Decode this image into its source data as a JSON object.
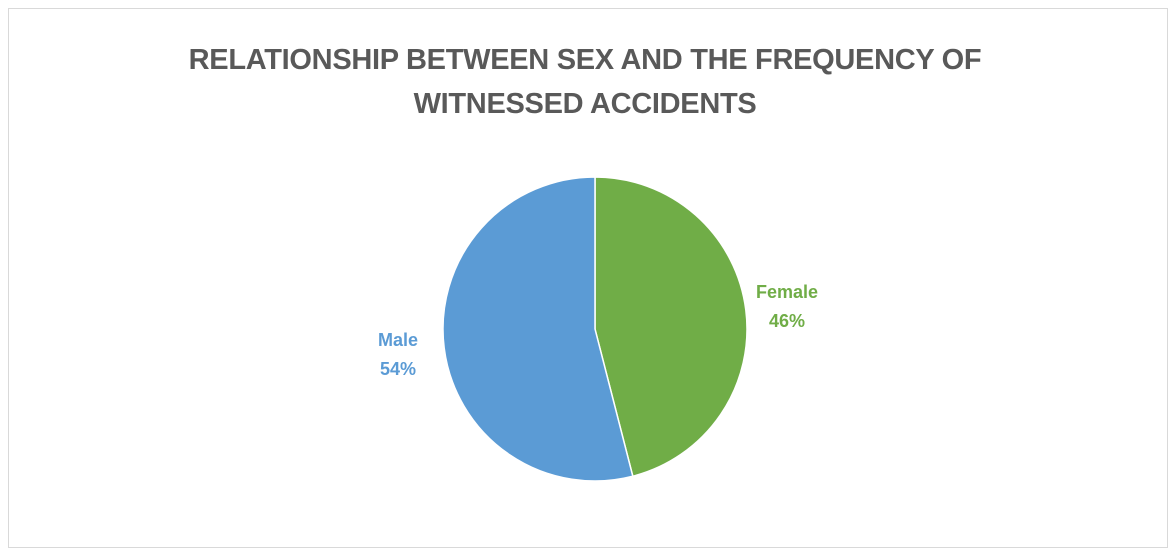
{
  "chart_data": {
    "type": "pie",
    "title": "RELATIONSHIP BETWEEN SEX AND THE FREQUENCY OF WITNESSED ACCIDENTS",
    "title_lines": [
      "RELATIONSHIP BETWEEN SEX AND THE FREQUENCY OF",
      "WITNESSED ACCIDENTS"
    ],
    "slices": [
      {
        "name": "Female",
        "label": "46%",
        "value": 46,
        "color": "#70ad47"
      },
      {
        "name": "Male",
        "label": "54%",
        "value": 54,
        "color": "#5b9bd5"
      }
    ],
    "legend": "none"
  }
}
